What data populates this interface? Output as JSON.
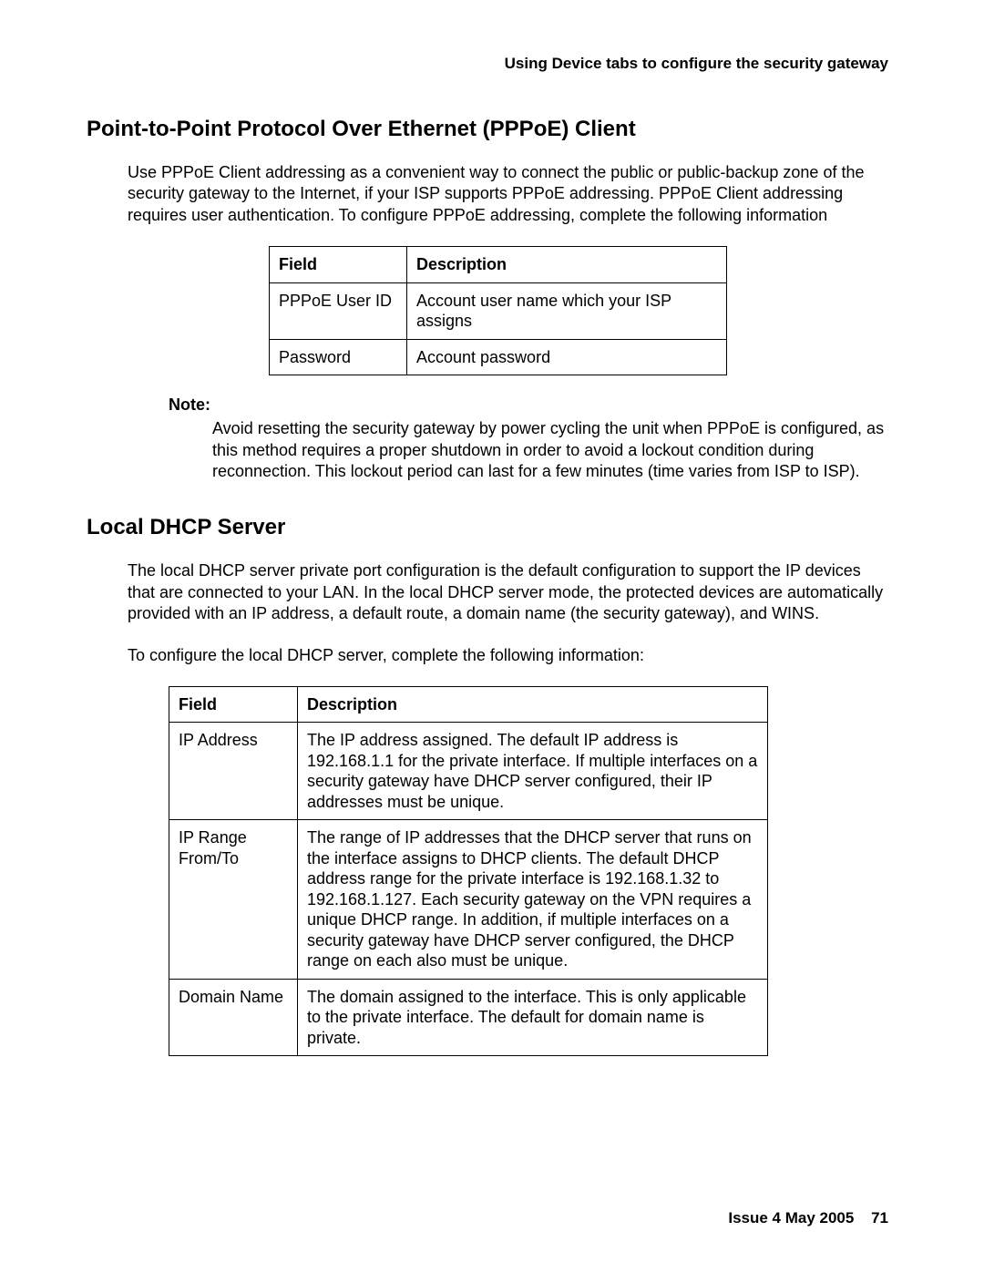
{
  "header": "Using Device tabs to configure the security gateway",
  "section1": {
    "heading": "Point-to-Point Protocol Over Ethernet (PPPoE) Client",
    "paragraph": "Use PPPoE Client addressing as a convenient way to connect the public or public-backup zone of the security gateway to the Internet, if your ISP supports PPPoE addressing. PPPoE Client addressing requires user authentication. To configure PPPoE addressing, complete the following information"
  },
  "table1": {
    "headers": {
      "field": "Field",
      "description": "Description"
    },
    "rows": [
      {
        "field": "PPPoE User ID",
        "description": "Account user name which your ISP assigns"
      },
      {
        "field": "Password",
        "description": "Account password"
      }
    ]
  },
  "note": {
    "label": "Note:",
    "text": "Avoid resetting the security gateway by power cycling the unit when PPPoE is configured, as this method requires a proper shutdown in order to avoid a lockout condition during reconnection. This lockout period can last for a few minutes (time varies from ISP to ISP)."
  },
  "section2": {
    "heading": "Local DHCP Server",
    "paragraph1": "The local DHCP server private port configuration is the default configuration to support the IP devices that are connected to your LAN. In the local DHCP server mode, the protected devices are automatically provided with an IP address, a default route, a domain name (the security gateway), and WINS.",
    "paragraph2": "To configure the local DHCP server, complete the following information:"
  },
  "table2": {
    "headers": {
      "field": "Field",
      "description": "Description"
    },
    "rows": [
      {
        "field": "IP Address",
        "description": "The IP address assigned. The default IP address is 192.168.1.1 for the private interface. If multiple interfaces on a security gateway have DHCP server configured, their IP addresses must be unique."
      },
      {
        "field": "IP Range From/To",
        "description": "The range of IP addresses that the DHCP server that runs on the interface assigns to DHCP clients. The default DHCP address range for the private interface is 192.168.1.32 to 192.168.1.127. Each security gateway on the VPN requires a unique DHCP range. In addition, if multiple interfaces on a security gateway have DHCP server configured, the DHCP range on each also must be unique."
      },
      {
        "field": "Domain Name",
        "description": "The domain assigned to the interface. This is only applicable to the private interface. The default for domain name is  private."
      }
    ]
  },
  "footer": {
    "issue": "Issue 4   May 2005",
    "page": "71"
  }
}
